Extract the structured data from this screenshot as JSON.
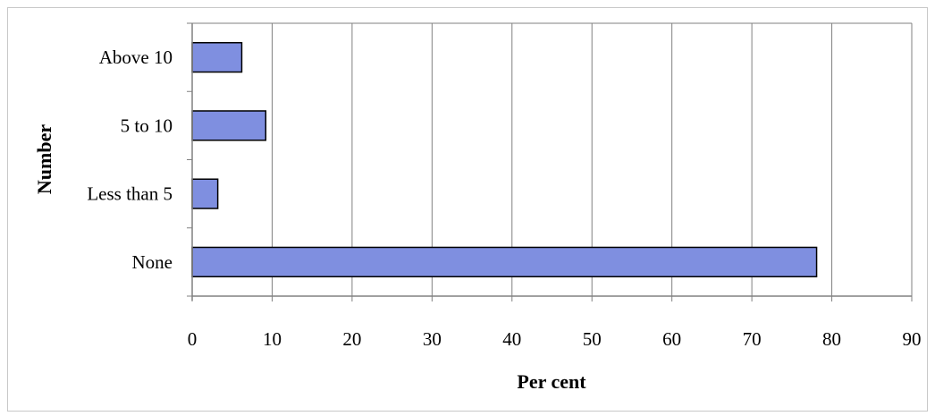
{
  "chart_data": {
    "type": "bar",
    "orientation": "horizontal",
    "categories": [
      "Above 10",
      "5 to 10",
      "Less than 5",
      "None"
    ],
    "values": [
      6.2,
      9.2,
      3.2,
      78.1
    ],
    "xlabel": "Per cent",
    "ylabel": "Number",
    "xlim": [
      0,
      90
    ],
    "xticks": [
      "0",
      "10",
      "20",
      "30",
      "40",
      "50",
      "60",
      "70",
      "80",
      "90"
    ],
    "grid": "vertical",
    "legend": "none",
    "bar_color": "#7f8fe0",
    "bar_edge_color": "#000000",
    "grid_color": "#808080"
  }
}
